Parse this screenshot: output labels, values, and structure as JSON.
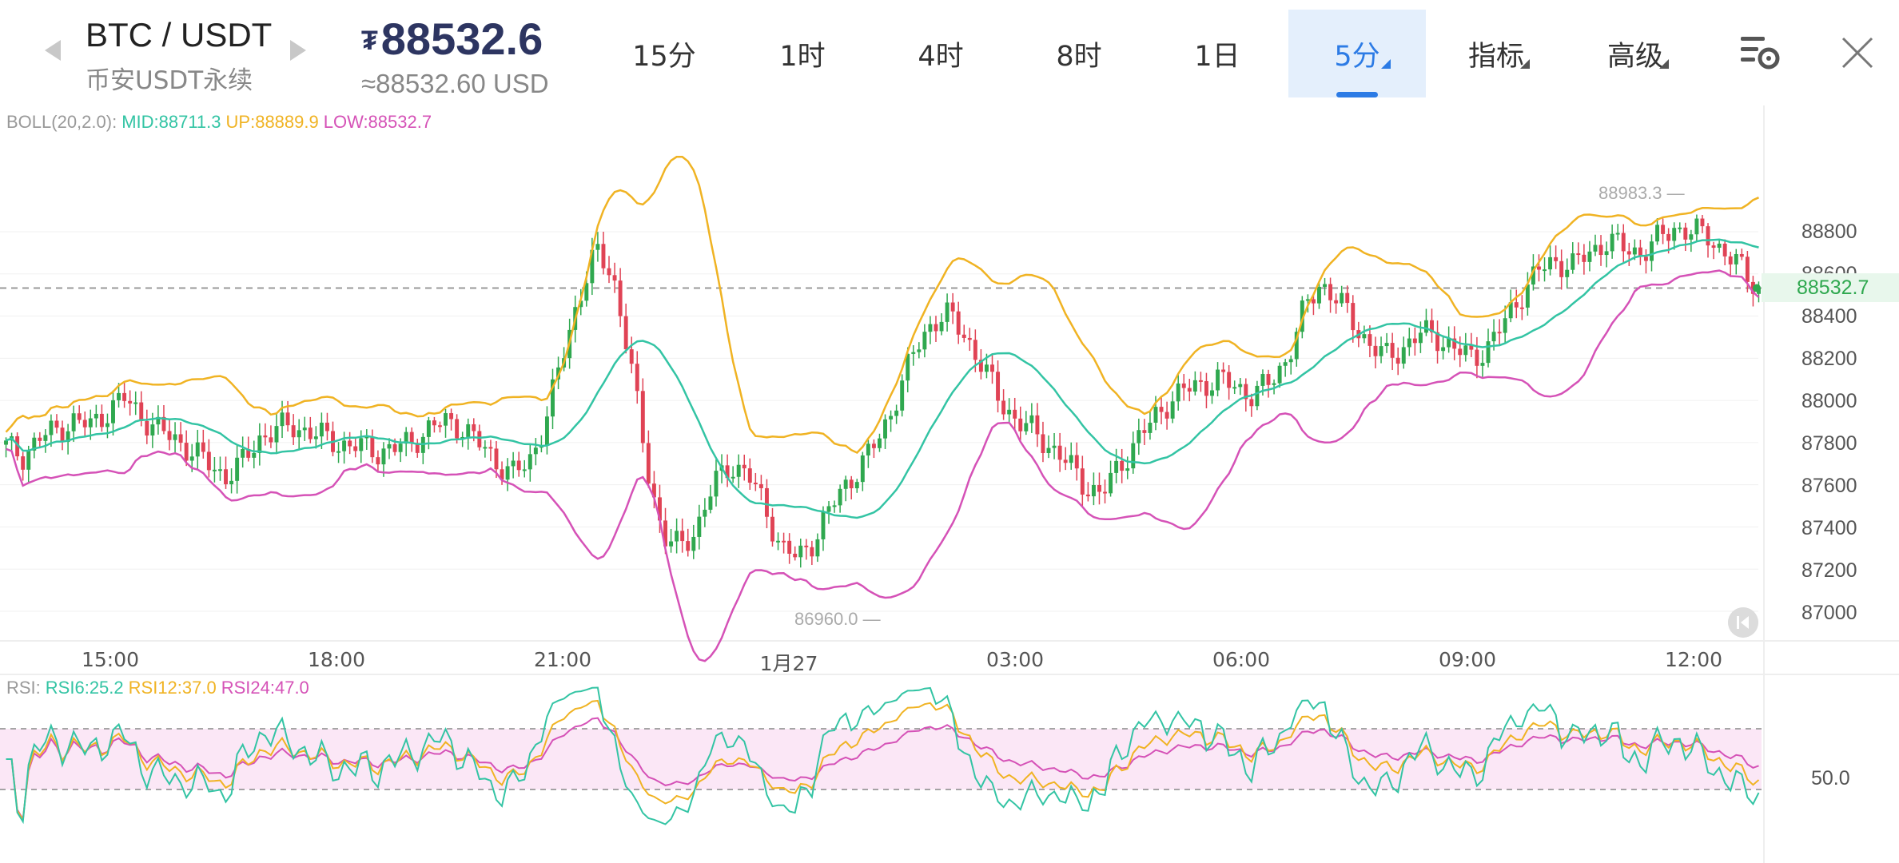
{
  "header": {
    "pair": "BTC / USDT",
    "subtitle": "币安USDT永续",
    "price_symbol": "₮",
    "price": "88532.6",
    "price_usd": "≈88532.60 USD",
    "tabs": [
      {
        "label": "15分",
        "active": false
      },
      {
        "label": "1时",
        "active": false
      },
      {
        "label": "4时",
        "active": false
      },
      {
        "label": "8时",
        "active": false
      },
      {
        "label": "1日",
        "active": false
      },
      {
        "label": "5分",
        "active": true
      },
      {
        "label": "指标",
        "active": false
      },
      {
        "label": "高级",
        "active": false
      }
    ]
  },
  "boll_legend": {
    "name": "BOLL(20,2.0):",
    "mid": "MID:88711.3",
    "up": "UP:88889.9",
    "low": "LOW:88532.7"
  },
  "rsi_legend": {
    "name": "RSI:",
    "rsi6": "RSI6:25.2",
    "rsi12": "RSI12:37.0",
    "rsi24": "RSI24:47.0"
  },
  "price_axis": [
    "88800",
    "88600",
    "88400",
    "88200",
    "88000",
    "87800",
    "87600",
    "87400",
    "87200",
    "87000"
  ],
  "time_axis": [
    "15:00",
    "18:00",
    "21:00",
    "1月27",
    "03:00",
    "06:00",
    "09:00",
    "12:00"
  ],
  "current_price_tag": "88532.7",
  "high_marker": "88983.3",
  "low_marker": "86960.0",
  "rsi_axis_label": "50.0",
  "colors": {
    "up": "#2fa84f",
    "down": "#e04355",
    "mid": "#33c4a4",
    "upper": "#f0b323",
    "lower": "#d552b7",
    "accent": "#2c7be5"
  },
  "chart_data": {
    "type": "candlestick",
    "indicators": [
      "BOLL(20,2.0)",
      "RSI(6,12,24)"
    ],
    "ylim": [
      86900,
      89000
    ],
    "x_ticks": [
      "15:00",
      "18:00",
      "21:00",
      "1月27",
      "03:00",
      "06:00",
      "09:00",
      "12:00"
    ],
    "close_series": [
      87780,
      87740,
      87820,
      87860,
      87900,
      87880,
      87950,
      88010,
      87930,
      87860,
      87820,
      87760,
      87700,
      87640,
      87700,
      87820,
      87860,
      87880,
      87850,
      87820,
      87790,
      87780,
      87760,
      87770,
      87800,
      87860,
      87900,
      87880,
      87800,
      87720,
      87650,
      87700,
      87900,
      88200,
      88500,
      88700,
      88600,
      88200,
      87700,
      87350,
      87300,
      87400,
      87600,
      87700,
      87650,
      87500,
      87300,
      87250,
      87350,
      87500,
      87620,
      87720,
      87850,
      88050,
      88250,
      88380,
      88400,
      88300,
      88150,
      88000,
      87900,
      87850,
      87780,
      87700,
      87600,
      87550,
      87680,
      87800,
      87900,
      88000,
      88050,
      88080,
      88100,
      88060,
      88030,
      88080,
      88200,
      88420,
      88560,
      88480,
      88360,
      88260,
      88200,
      88260,
      88320,
      88300,
      88240,
      88200,
      88260,
      88380,
      88520,
      88620,
      88660,
      88640,
      88700,
      88760,
      88720,
      88700,
      88760,
      88820,
      88800,
      88780,
      88700,
      88620,
      88532.7
    ],
    "boll_mid_last": 88711.3,
    "boll_up_last": 88889.9,
    "boll_low_last": 88532.7,
    "high": 88983.3,
    "low": 86960.0,
    "rsi": {
      "rsi6": 25.2,
      "rsi12": 37.0,
      "rsi24": 47.0
    },
    "rsi_band": [
      30,
      70
    ],
    "rsi_ylim": [
      0,
      100
    ]
  }
}
